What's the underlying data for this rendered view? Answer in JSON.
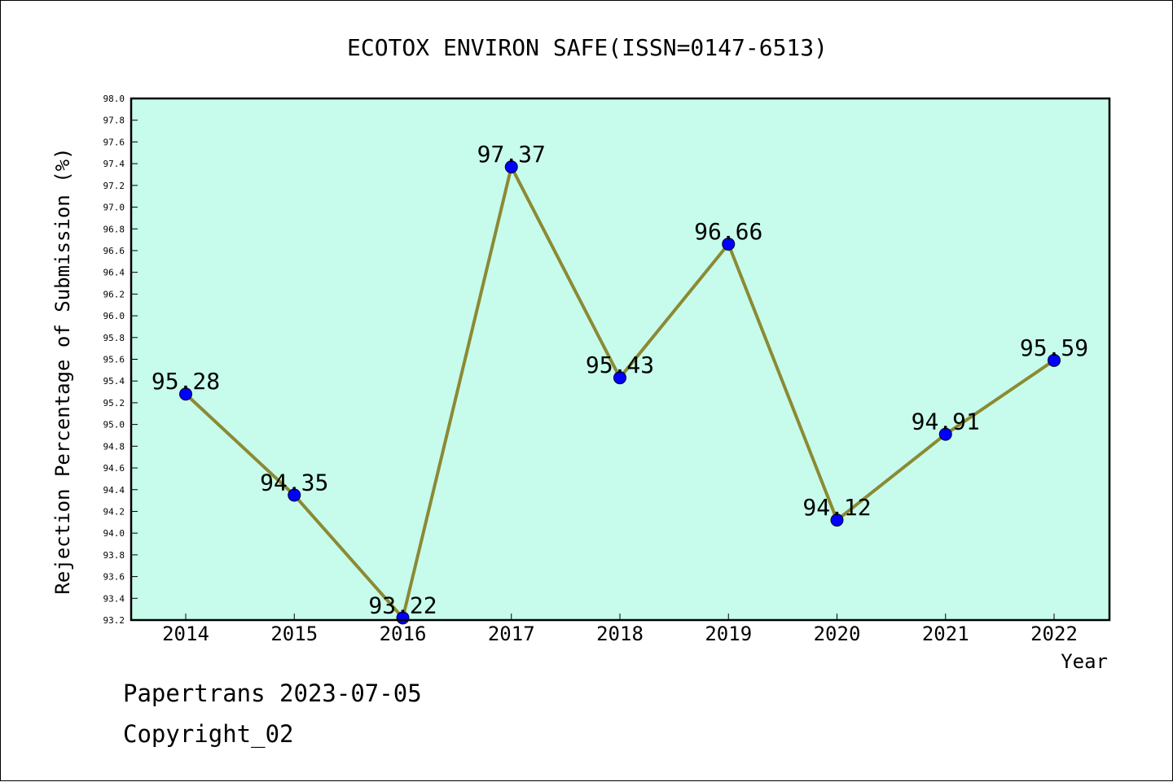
{
  "chart_data": {
    "type": "line",
    "title": "ECOTOX ENVIRON SAFE(ISSN=0147-6513)",
    "xlabel": "Year",
    "ylabel": "Rejection Percentage of Submission (%)",
    "categories": [
      "2014",
      "2015",
      "2016",
      "2017",
      "2018",
      "2019",
      "2020",
      "2021",
      "2022"
    ],
    "values": [
      95.28,
      94.35,
      93.22,
      97.37,
      95.43,
      96.66,
      94.12,
      94.91,
      95.59
    ],
    "data_labels": [
      "95.28",
      "94.35",
      "93.22",
      "97.37",
      "95.43",
      "96.66",
      "94.12",
      "94.91",
      "95.59"
    ],
    "ylim": [
      93.2,
      98.0
    ],
    "yticks": [
      "93.2",
      "93.4",
      "93.6",
      "93.8",
      "94.0",
      "94.2",
      "94.4",
      "94.6",
      "94.8",
      "95.0",
      "95.2",
      "95.4",
      "95.6",
      "95.8",
      "96.0",
      "96.2",
      "96.4",
      "96.6",
      "96.8",
      "97.0",
      "97.2",
      "97.4",
      "97.6",
      "97.8",
      "98.0"
    ],
    "grid": false,
    "colors": {
      "plot_background": "#c7fcec",
      "line": "#8b8a34",
      "marker": "#0000ff"
    }
  },
  "footer": {
    "line1": "Papertrans 2023-07-05",
    "line2": "Copyright_02"
  }
}
